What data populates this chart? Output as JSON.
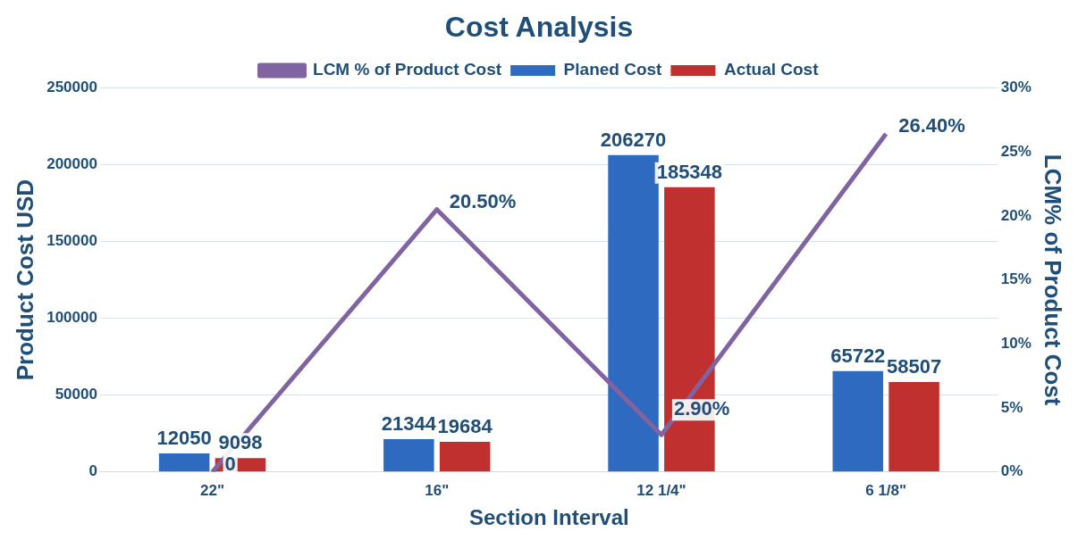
{
  "chart_data": {
    "type": "bar",
    "title": "Cost Analysis",
    "xlabel": "Section Interval",
    "ylabel": "Product Cost USD",
    "y2label": "LCM% of Product Cost",
    "categories": [
      "22\"",
      "16\"",
      "12 1/4\"",
      "6 1/8\""
    ],
    "series": [
      {
        "name": "Planed Cost",
        "color": "#2e6bc0",
        "values": [
          12050,
          21344,
          206270,
          65722
        ],
        "value_labels": [
          "12050",
          "21344",
          "206270",
          "65722"
        ]
      },
      {
        "name": "Actual Cost",
        "color": "#c0302f",
        "values": [
          9098,
          19684,
          185348,
          58507
        ],
        "value_labels": [
          "9098",
          "19684",
          "185348",
          "58507"
        ]
      },
      {
        "name": "LCM % of Product Cost",
        "type": "line",
        "axis": "y2",
        "color": "#8064a2",
        "values": [
          0,
          20.5,
          2.9,
          26.4
        ],
        "value_labels": [
          "0",
          "20.50%",
          "2.90%",
          "26.40%"
        ]
      }
    ],
    "ylim": [
      0,
      250000
    ],
    "yticks": [
      0,
      50000,
      100000,
      150000,
      200000,
      250000
    ],
    "y2lim": [
      0,
      30
    ],
    "y2ticks": [
      {
        "value": 0,
        "label": "0%"
      },
      {
        "value": 5,
        "label": "5%"
      },
      {
        "value": 10,
        "label": "10%"
      },
      {
        "value": 15,
        "label": "15%"
      },
      {
        "value": 20,
        "label": "20%"
      },
      {
        "value": 25,
        "label": "25%"
      },
      {
        "value": 30,
        "label": "30%"
      }
    ],
    "grid": "y",
    "legend": "top"
  }
}
